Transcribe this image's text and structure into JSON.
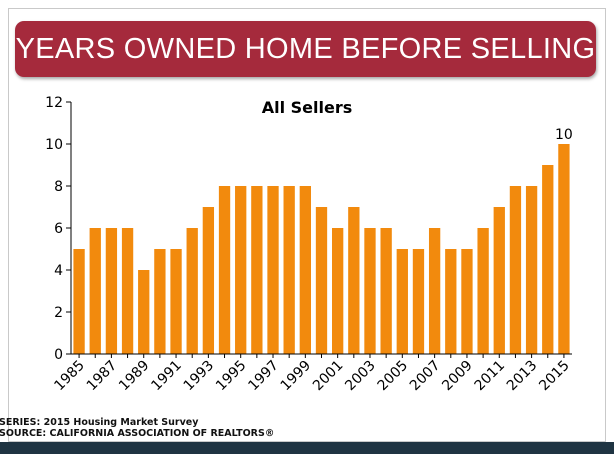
{
  "banner": {
    "title": "YEARS OWNED HOME BEFORE SELLING"
  },
  "chart_data": {
    "type": "bar",
    "title": "All Sellers",
    "categories": [
      "1985",
      "1986",
      "1987",
      "1988",
      "1989",
      "1990",
      "1991",
      "1992",
      "1993",
      "1994",
      "1995",
      "1996",
      "1997",
      "1998",
      "1999",
      "2000",
      "2001",
      "2002",
      "2003",
      "2004",
      "2005",
      "2006",
      "2007",
      "2008",
      "2009",
      "2010",
      "2011",
      "2012",
      "2013",
      "2014",
      "2015"
    ],
    "tick_labels": [
      "1985",
      "1987",
      "1989",
      "1991",
      "1993",
      "1995",
      "1997",
      "1999",
      "2001",
      "2003",
      "2005",
      "2007",
      "2009",
      "2011",
      "2013",
      "2015"
    ],
    "values": [
      5,
      6,
      6,
      6,
      4,
      5,
      5,
      6,
      7,
      8,
      8,
      8,
      8,
      8,
      8,
      7,
      6,
      7,
      6,
      6,
      5,
      5,
      6,
      5,
      5,
      6,
      7,
      8,
      8,
      9,
      10
    ],
    "ylim": [
      0,
      12
    ],
    "yticks": [
      0,
      2,
      4,
      6,
      8,
      10,
      12
    ],
    "xlabel": "",
    "ylabel": "",
    "grid": false,
    "annotation": {
      "category": "2015",
      "text": "10"
    },
    "bar_color": "#f28a0d"
  },
  "footer": {
    "series": "SERIES: 2015 Housing Market Survey",
    "source": "SOURCE:  CALIFORNIA ASSOCIATION OF REALTORS®"
  }
}
